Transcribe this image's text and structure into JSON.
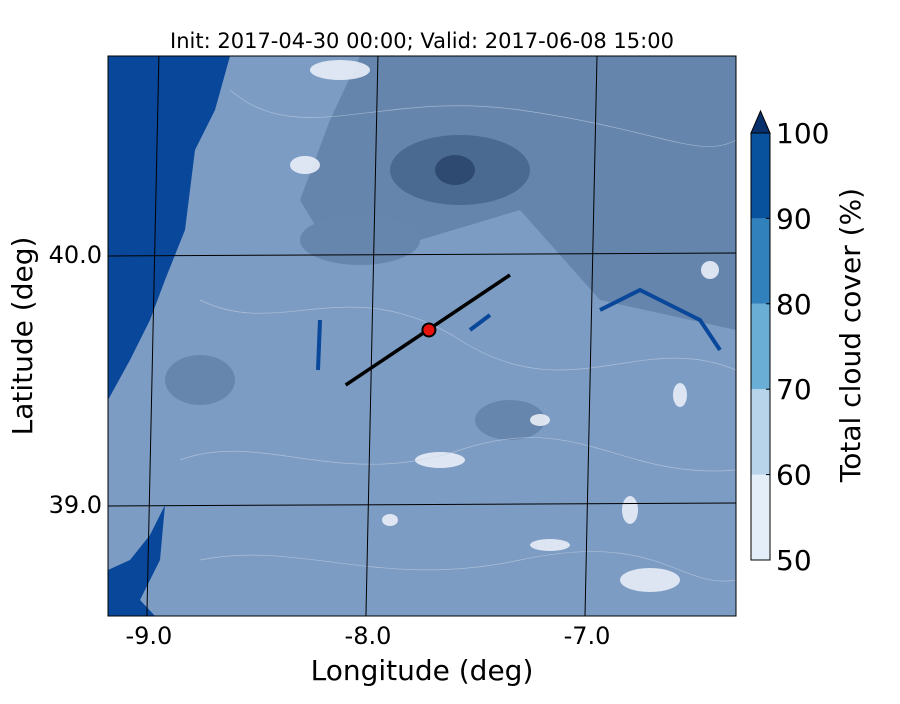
{
  "chart_data": {
    "type": "map",
    "title": "Init: 2017-04-30 00:00; Valid: 2017-06-08 15:00",
    "xlabel": "Longitude (deg)",
    "ylabel": "Latitude (deg)",
    "xlim": [
      -9.205,
      -6.338
    ],
    "ylim": [
      38.556,
      40.796
    ],
    "xticks": [
      {
        "value": -9,
        "label": "-9.0"
      },
      {
        "value": -8,
        "label": "-8.0"
      },
      {
        "value": -7,
        "label": "-7.0"
      }
    ],
    "yticks": [
      {
        "value": 39,
        "label": "39.0"
      },
      {
        "value": 40,
        "label": "40.0"
      }
    ],
    "grid": true,
    "transect": {
      "lon": [
        -8.12,
        -7.37
      ],
      "lat": [
        39.48,
        39.92
      ],
      "color": "#000000"
    },
    "point": {
      "lon": -7.74,
      "lat": 39.7,
      "color": "#e8120c"
    },
    "colorbar": {
      "label": "Total cloud cover (%)",
      "levels": [
        50,
        60,
        70,
        80,
        90,
        100
      ],
      "colors": [
        "#e3eef9",
        "#b7d4ea",
        "#6aaed6",
        "#3181bd",
        "#08519c"
      ],
      "extend_color": "#08306b"
    }
  }
}
